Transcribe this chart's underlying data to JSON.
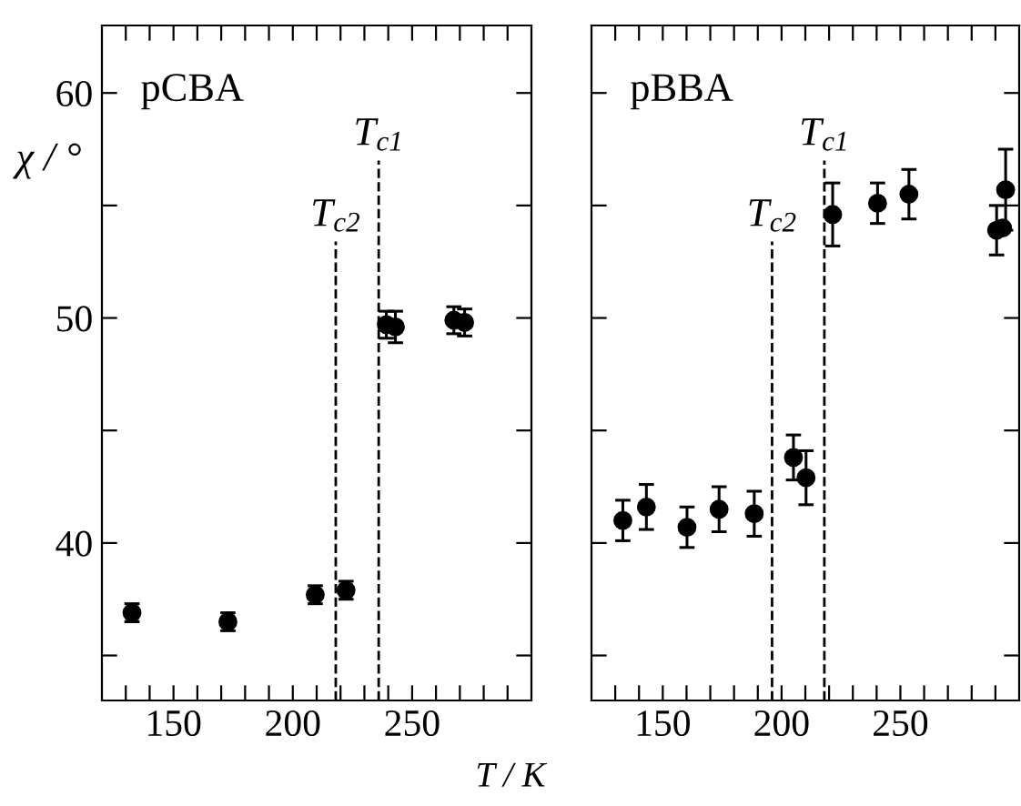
{
  "chart_data": [
    {
      "type": "scatter",
      "title": "pCBA",
      "xlabel": "T / K",
      "ylabel": "χ / °",
      "marker": "circle",
      "grid": false,
      "x": [
        132.6,
        172.8,
        209.4,
        222.3,
        239.2,
        243,
        267.5,
        272
      ],
      "series": [
        {
          "color": "#000000",
          "values": [
            36.9,
            36.5,
            37.7,
            37.9,
            49.7,
            49.6,
            49.9,
            49.8
          ],
          "errors": [
            0.4,
            0.4,
            0.4,
            0.4,
            0.6,
            0.7,
            0.6,
            0.6
          ]
        }
      ],
      "ref_lines": [
        {
          "axis": "x",
          "value": 218,
          "label": "T$_{c2}$",
          "line_style": "dashed",
          "color": "#000000"
        },
        {
          "axis": "x",
          "value": 236,
          "label": "T$_{c1}$",
          "line_style": "dashed",
          "color": "#000000"
        }
      ],
      "xlim": [
        120,
        300
      ],
      "ylim": [
        33,
        63
      ],
      "xticks": [
        {
          "value": 130,
          "label": null
        },
        {
          "value": 140,
          "label": null
        },
        150,
        {
          "value": 160,
          "label": null
        },
        {
          "value": 170,
          "label": null
        },
        {
          "value": 180,
          "label": null
        },
        {
          "value": 190,
          "label": null
        },
        200,
        {
          "value": 210,
          "label": null
        },
        {
          "value": 220,
          "label": null
        },
        {
          "value": 230,
          "label": null
        },
        {
          "value": 240,
          "label": null
        },
        250,
        {
          "value": 260,
          "label": null
        },
        {
          "value": 270,
          "label": null
        },
        {
          "value": 280,
          "label": null
        },
        {
          "value": 290,
          "label": null
        }
      ],
      "yticks": [
        {
          "value": 35,
          "label": null
        },
        40,
        {
          "value": 45,
          "label": null
        },
        50,
        {
          "value": 55,
          "label": null
        },
        60
      ]
    },
    {
      "type": "scatter",
      "title": "pBBA",
      "marker": "circle",
      "grid": false,
      "tick_labels": "x",
      "x": [
        133.2,
        143.1,
        160.2,
        173.7,
        188.5,
        205,
        210.3,
        221.5,
        240.4,
        253.6,
        290.5,
        293,
        294.3
      ],
      "series": [
        {
          "color": "#000000",
          "values": [
            41.0,
            41.6,
            40.7,
            41.5,
            41.3,
            43.8,
            42.9,
            54.6,
            55.1,
            55.5,
            53.9,
            54.0,
            55.7
          ],
          "errors": [
            0.9,
            1.0,
            0.9,
            1.0,
            1.0,
            1.0,
            1.2,
            1.4,
            0.9,
            1.1,
            1.1,
            null,
            1.8
          ]
        }
      ],
      "ref_lines": [
        {
          "axis": "x",
          "value": 196,
          "label": "T$_{c2}$",
          "line_style": "dashed",
          "color": "#000000"
        },
        {
          "axis": "x",
          "value": 218,
          "label": "T$_{c1}$",
          "line_style": "dashed",
          "color": "#000000"
        }
      ],
      "xlim": [
        120,
        300
      ],
      "ylim": [
        33,
        63
      ],
      "xticks": [
        {
          "value": 130,
          "label": null
        },
        {
          "value": 140,
          "label": null
        },
        150,
        {
          "value": 160,
          "label": null
        },
        {
          "value": 170,
          "label": null
        },
        {
          "value": 180,
          "label": null
        },
        {
          "value": 190,
          "label": null
        },
        200,
        {
          "value": 210,
          "label": null
        },
        {
          "value": 220,
          "label": null
        },
        {
          "value": 230,
          "label": null
        },
        {
          "value": 240,
          "label": null
        },
        250,
        {
          "value": 260,
          "label": null
        },
        {
          "value": 270,
          "label": null
        },
        {
          "value": 280,
          "label": null
        },
        {
          "value": 290,
          "label": null
        }
      ],
      "yticks": [
        {
          "value": 35,
          "label": null
        },
        40,
        {
          "value": 45,
          "label": null
        },
        50,
        {
          "value": 55,
          "label": null
        },
        60
      ]
    }
  ]
}
